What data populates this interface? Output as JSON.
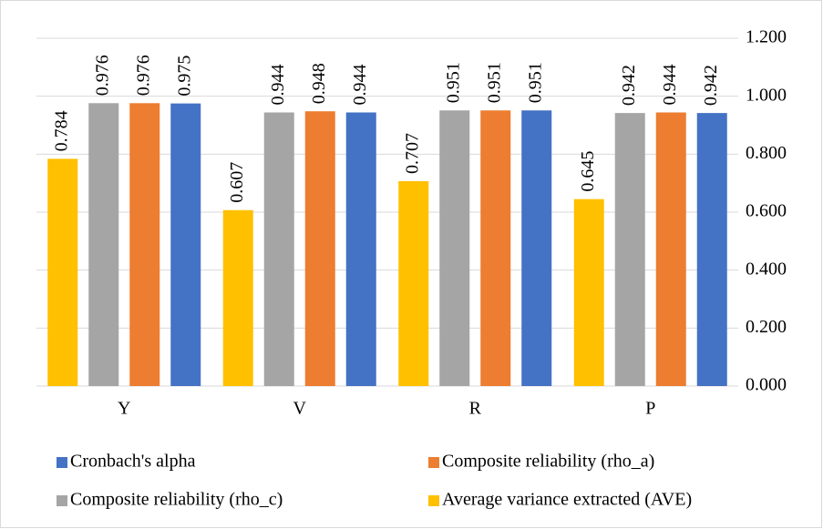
{
  "chart_data": {
    "type": "bar",
    "categories": [
      "Y",
      "V",
      "R",
      "P"
    ],
    "series": [
      {
        "name": "Average variance extracted (AVE)",
        "color": "#ffc000",
        "values": [
          0.784,
          0.607,
          0.707,
          0.645
        ]
      },
      {
        "name": "Composite reliability (rho_c)",
        "color": "#a5a5a5",
        "values": [
          0.976,
          0.944,
          0.951,
          0.942
        ]
      },
      {
        "name": "Composite reliability (rho_a)",
        "color": "#ed7d31",
        "values": [
          0.976,
          0.948,
          0.951,
          0.944
        ]
      },
      {
        "name": "Cronbach's alpha",
        "color": "#4472c4",
        "values": [
          0.975,
          0.944,
          0.951,
          0.942
        ]
      }
    ],
    "ylim": [
      0,
      1.2
    ],
    "yticks": [
      {
        "value": 0,
        "label": "0.000"
      },
      {
        "value": 0.2,
        "label": "0.200"
      },
      {
        "value": 0.4,
        "label": "0.400"
      },
      {
        "value": 0.6,
        "label": "0.600"
      },
      {
        "value": 0.8,
        "label": "0.800"
      },
      {
        "value": 1.0,
        "label": "1.000"
      },
      {
        "value": 1.2,
        "label": "1.200"
      }
    ],
    "grid": true
  }
}
